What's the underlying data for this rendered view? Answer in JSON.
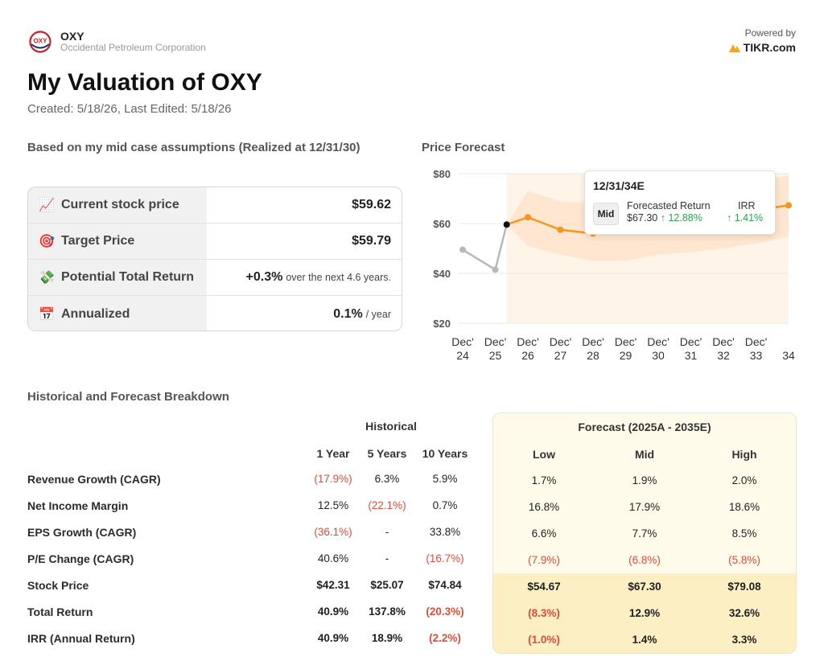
{
  "header": {
    "ticker": "OXY",
    "company": "Occidental Petroleum Corporation",
    "logo_text": "OXY",
    "powered_by": "Powered by",
    "brand": "TIKR.com",
    "title": "My Valuation of OXY",
    "created": "Created: 5/18/26, Last Edited: 5/18/26"
  },
  "summary": {
    "heading": "Based on my mid case assumptions (Realized at 12/31/30)",
    "rows": [
      {
        "icon": "chart-up-icon",
        "emoji": "📈",
        "label": "Current stock price",
        "value": "$59.62",
        "suffix": ""
      },
      {
        "icon": "target-icon",
        "emoji": "🎯",
        "label": "Target Price",
        "value": "$59.79",
        "suffix": ""
      },
      {
        "icon": "money-icon",
        "emoji": "💸",
        "label": "Potential Total Return",
        "value": "+0.3%",
        "suffix": "over the next 4.6 years."
      },
      {
        "icon": "calendar-icon",
        "emoji": "📅",
        "label": "Annualized",
        "value": "0.1%",
        "suffix": "/ year"
      }
    ]
  },
  "price_forecast": {
    "heading": "Price Forecast",
    "tooltip": {
      "date": "12/31/34E",
      "case": "Mid",
      "forecasted_return_label": "Forecasted Return",
      "irr_label": "IRR",
      "price": "$67.30",
      "return": "↑ 12.88%",
      "irr": "↑ 1.41%"
    }
  },
  "chart_data": {
    "type": "line",
    "title": "Price Forecast",
    "ylim": [
      20,
      80
    ],
    "y_ticks": [
      "$20",
      "$40",
      "$60",
      "$80"
    ],
    "x_ticks": [
      [
        "Dec'",
        "24"
      ],
      [
        "Dec'",
        "25"
      ],
      [
        "Dec'",
        "26"
      ],
      [
        "Dec'",
        "27"
      ],
      [
        "Dec'",
        "28"
      ],
      [
        "Dec'",
        "29"
      ],
      [
        "Dec'",
        "30"
      ],
      [
        "Dec'",
        "31"
      ],
      [
        "Dec'",
        "32"
      ],
      [
        "Dec'",
        "33"
      ],
      [
        "",
        "34"
      ]
    ],
    "historical": {
      "x": [
        0,
        1,
        1.35
      ],
      "y": [
        49.5,
        41.5,
        59.6
      ]
    },
    "forecast_mid": {
      "x": [
        1.35,
        2,
        3,
        4,
        10
      ],
      "y": [
        59.6,
        62.5,
        57.5,
        56,
        67.3
      ]
    },
    "forecast_band": {
      "x": [
        1.35,
        2,
        3,
        4,
        5,
        6,
        7,
        8,
        9,
        10
      ],
      "low": [
        59.6,
        51,
        47.5,
        45,
        45,
        47.5,
        48.5,
        50,
        52,
        54.7
      ],
      "high": [
        59.6,
        73,
        69,
        68,
        70,
        72,
        73,
        75,
        77,
        79.1
      ]
    },
    "forecast_start_x": 1.35,
    "grid": true
  },
  "breakdown": {
    "heading": "Historical and Forecast Breakdown",
    "historical_title": "Historical",
    "forecast_title": "Forecast (2025A - 2035E)",
    "hist_cols": [
      "1 Year",
      "5 Years",
      "10 Years"
    ],
    "fc_cols": [
      "Low",
      "Mid",
      "High"
    ],
    "rows": [
      {
        "label": "Revenue Growth (CAGR)",
        "hist": [
          "(17.9%)",
          "6.3%",
          "5.9%"
        ],
        "fc": [
          "1.7%",
          "1.9%",
          "2.0%"
        ]
      },
      {
        "label": "Net Income Margin",
        "hist": [
          "12.5%",
          "(22.1%)",
          "0.7%"
        ],
        "fc": [
          "16.8%",
          "17.9%",
          "18.6%"
        ]
      },
      {
        "label": "EPS Growth (CAGR)",
        "hist": [
          "(36.1%)",
          "-",
          "33.8%"
        ],
        "fc": [
          "6.6%",
          "7.7%",
          "8.5%"
        ]
      },
      {
        "label": "P/E Change (CAGR)",
        "hist": [
          "40.6%",
          "-",
          "(16.7%)"
        ],
        "fc": [
          "(7.9%)",
          "(6.8%)",
          "(5.8%)"
        ]
      },
      {
        "label": "Stock Price",
        "hist": [
          "$42.31",
          "$25.07",
          "$74.84"
        ],
        "fc": [
          "$54.67",
          "$67.30",
          "$79.08"
        ]
      },
      {
        "label": "Total Return",
        "hist": [
          "40.9%",
          "137.8%",
          "(20.3%)"
        ],
        "fc": [
          "(8.3%)",
          "12.9%",
          "32.6%"
        ]
      },
      {
        "label": "IRR (Annual Return)",
        "hist": [
          "40.9%",
          "18.9%",
          "(2.2%)"
        ],
        "fc": [
          "(1.0%)",
          "1.4%",
          "3.3%"
        ]
      }
    ]
  },
  "colors": {
    "forecast_line": "#f5961e",
    "band": "#fde2c8",
    "negative": "#e04b3a",
    "positive": "#2aa34a",
    "forecast_bg": "#fffbea",
    "forecast_band_bg": "#fcefc4"
  }
}
